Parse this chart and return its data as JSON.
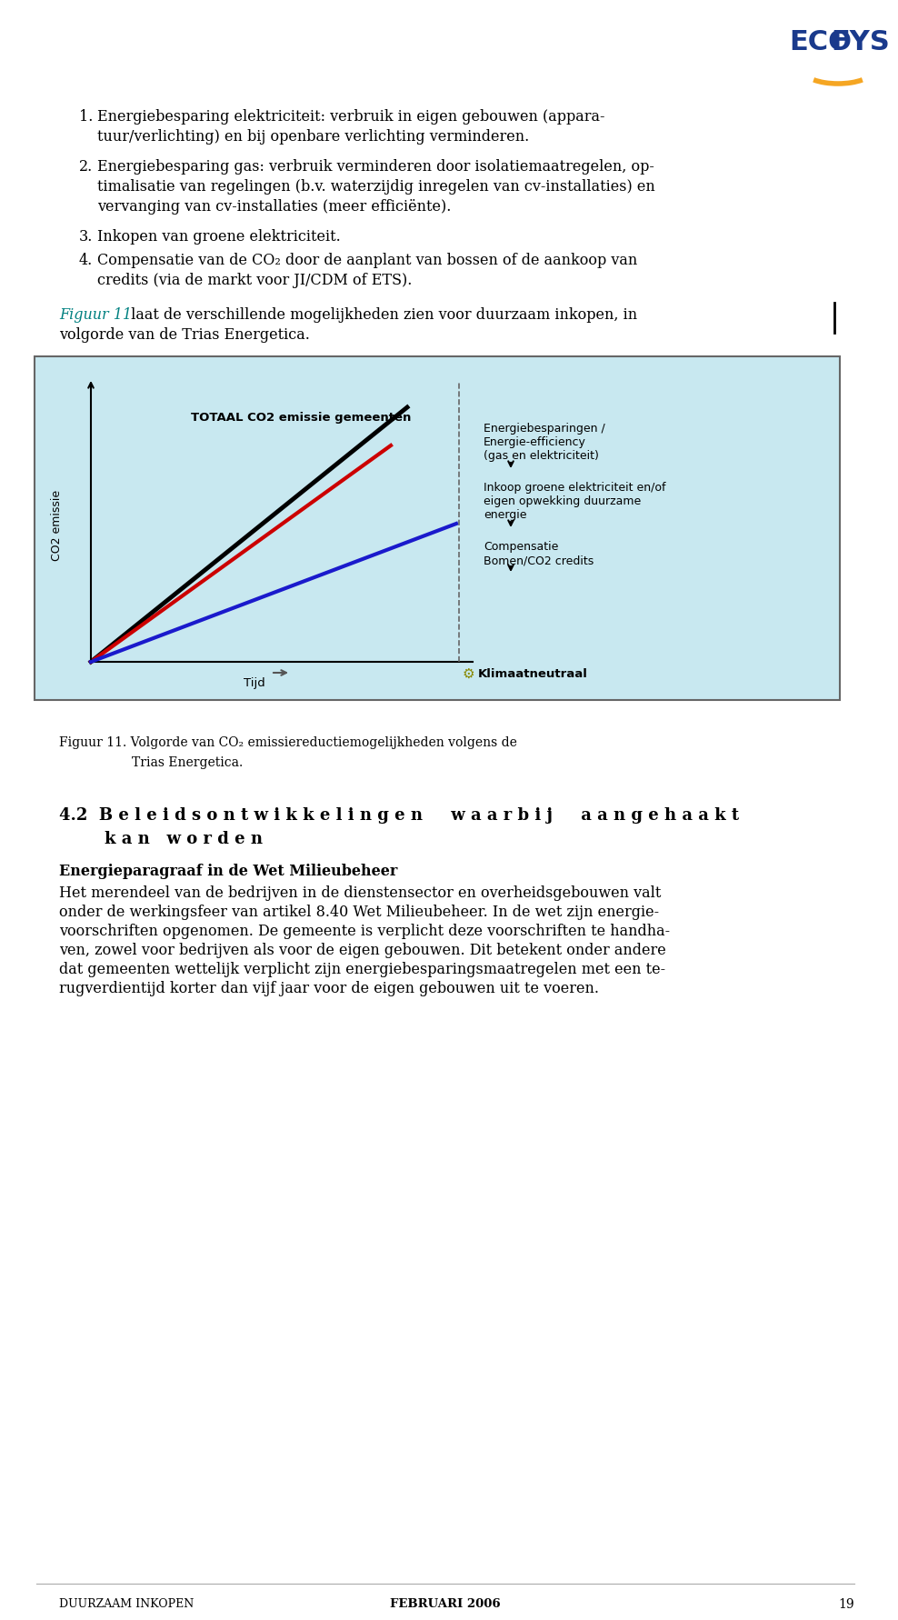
{
  "bg_color": "#ffffff",
  "page_width": 9.6,
  "page_height": 17.55,
  "logo_color": "#1a3a8c",
  "logo_arc_color": "#f5a623",
  "figuur_ref_color": "#008080",
  "chart_bg": "#c8e8f0",
  "footer_left": "DUURZAAM INKOPEN",
  "footer_right": "FEBRUARI 2006",
  "page_number": "19"
}
